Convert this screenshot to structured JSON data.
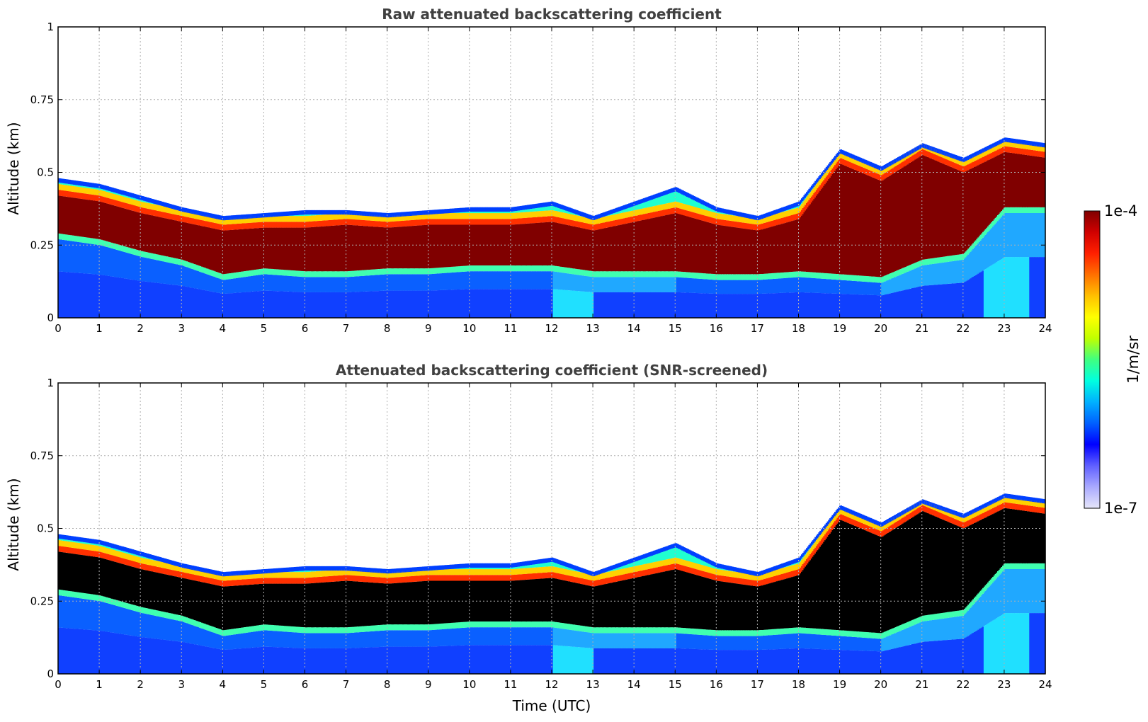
{
  "chart_data": [
    {
      "type": "heatmap",
      "id": "raw",
      "title": "Raw attenuated backscattering coefficient",
      "ylabel": "Altitude (km)",
      "xlabel": "",
      "xlim": [
        0,
        24
      ],
      "ylim": [
        0,
        1
      ],
      "xticks": [
        "0",
        "1",
        "2",
        "3",
        "4",
        "5",
        "6",
        "7",
        "8",
        "9",
        "10",
        "11",
        "12",
        "13",
        "14",
        "15",
        "16",
        "17",
        "18",
        "19",
        "20",
        "21",
        "22",
        "23",
        "24"
      ],
      "yticks": [
        {
          "value": 0,
          "label": "0"
        },
        {
          "value": 0.25,
          "label": "0.25"
        },
        {
          "value": 0.5,
          "label": "0.5"
        },
        {
          "value": 0.75,
          "label": "0.75"
        },
        {
          "value": 1,
          "label": "1"
        }
      ],
      "grid": true,
      "saturate_color": "#800000",
      "boundary_layer": {
        "hours": [
          0,
          1,
          2,
          3,
          4,
          5,
          6,
          7,
          8,
          9,
          10,
          11,
          12,
          13,
          14,
          15,
          16,
          17,
          18,
          19,
          20,
          21,
          22,
          23,
          24
        ],
        "top_km": [
          0.48,
          0.46,
          0.42,
          0.38,
          0.35,
          0.36,
          0.37,
          0.37,
          0.36,
          0.37,
          0.38,
          0.38,
          0.4,
          0.35,
          0.4,
          0.45,
          0.38,
          0.35,
          0.4,
          0.58,
          0.52,
          0.6,
          0.55,
          0.62,
          0.6
        ],
        "core_top_km": [
          0.42,
          0.4,
          0.36,
          0.33,
          0.3,
          0.31,
          0.31,
          0.32,
          0.31,
          0.32,
          0.32,
          0.32,
          0.33,
          0.3,
          0.33,
          0.36,
          0.32,
          0.3,
          0.34,
          0.53,
          0.47,
          0.56,
          0.5,
          0.57,
          0.55
        ],
        "core_bottom_km": [
          0.29,
          0.27,
          0.23,
          0.2,
          0.15,
          0.17,
          0.16,
          0.16,
          0.17,
          0.17,
          0.18,
          0.18,
          0.18,
          0.16,
          0.16,
          0.16,
          0.15,
          0.15,
          0.16,
          0.15,
          0.14,
          0.2,
          0.22,
          0.38,
          0.38
        ]
      }
    },
    {
      "type": "heatmap",
      "id": "snr",
      "title": "Attenuated backscattering coefficient (SNR-screened)",
      "ylabel": "Altitude (km)",
      "xlabel": "Time (UTC)",
      "xlim": [
        0,
        24
      ],
      "ylim": [
        0,
        1
      ],
      "xticks": [
        "0",
        "1",
        "2",
        "3",
        "4",
        "5",
        "6",
        "7",
        "8",
        "9",
        "10",
        "11",
        "12",
        "13",
        "14",
        "15",
        "16",
        "17",
        "18",
        "19",
        "20",
        "21",
        "22",
        "23",
        "24"
      ],
      "yticks": [
        {
          "value": 0,
          "label": "0"
        },
        {
          "value": 0.25,
          "label": "0.25"
        },
        {
          "value": 0.5,
          "label": "0.5"
        },
        {
          "value": 0.75,
          "label": "0.75"
        },
        {
          "value": 1,
          "label": "1"
        }
      ],
      "grid": true,
      "saturate_color": "#000000",
      "boundary_layer": {
        "hours": [
          0,
          1,
          2,
          3,
          4,
          5,
          6,
          7,
          8,
          9,
          10,
          11,
          12,
          13,
          14,
          15,
          16,
          17,
          18,
          19,
          20,
          21,
          22,
          23,
          24
        ],
        "top_km": [
          0.48,
          0.46,
          0.42,
          0.38,
          0.35,
          0.36,
          0.37,
          0.37,
          0.36,
          0.37,
          0.38,
          0.38,
          0.4,
          0.35,
          0.4,
          0.45,
          0.38,
          0.35,
          0.4,
          0.58,
          0.52,
          0.6,
          0.55,
          0.62,
          0.6
        ],
        "core_top_km": [
          0.42,
          0.4,
          0.36,
          0.33,
          0.3,
          0.31,
          0.31,
          0.32,
          0.31,
          0.32,
          0.32,
          0.32,
          0.33,
          0.3,
          0.33,
          0.36,
          0.32,
          0.3,
          0.34,
          0.53,
          0.47,
          0.56,
          0.5,
          0.57,
          0.55
        ],
        "core_bottom_km": [
          0.29,
          0.27,
          0.23,
          0.2,
          0.15,
          0.17,
          0.16,
          0.16,
          0.17,
          0.17,
          0.18,
          0.18,
          0.18,
          0.16,
          0.16,
          0.16,
          0.15,
          0.15,
          0.16,
          0.15,
          0.14,
          0.2,
          0.22,
          0.38,
          0.38
        ]
      }
    }
  ],
  "colorbar": {
    "label": "1/m/sr",
    "min_label": "1e-7",
    "max_label": "1e-4",
    "colors": [
      "#e6e6fa",
      "#aaaaff",
      "#6060ff",
      "#0000ff",
      "#0060ff",
      "#00b0ff",
      "#00ffe0",
      "#40ff80",
      "#c0ff00",
      "#ffff00",
      "#ffc000",
      "#ff7000",
      "#ff2000",
      "#d00000",
      "#800000"
    ]
  }
}
